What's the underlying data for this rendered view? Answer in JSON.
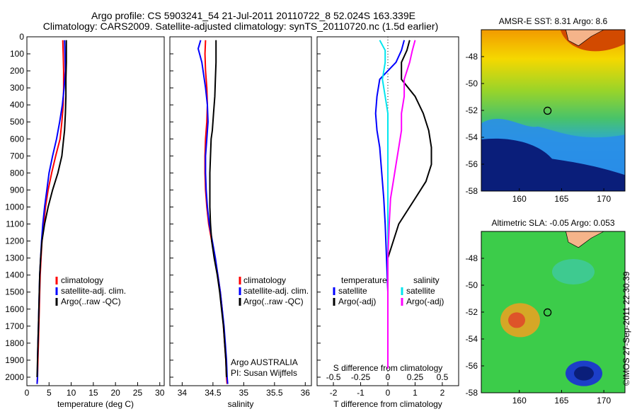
{
  "header": {
    "title_line1": "Argo profile: CS 5903241_54 21-Jul-2011 20110722_8 52.024S 163.339E",
    "title_line2": "Climatology: CARS2009. Satellite-adjusted climatology: synTS_20110720.nc (1.5d earlier)"
  },
  "side_stamp": "©IMOS 27-Sep-2011 22:30:39",
  "colors": {
    "climatology": "#ff0000",
    "satellite": "#0000ff",
    "argo": "#000000",
    "sal_satellite": "#00e5ee",
    "sal_argo": "#ff00ff",
    "land": "#f5b48a"
  },
  "chart_data": [
    {
      "type": "line",
      "panel": "temperature",
      "xlabel": "temperature (deg C)",
      "ylabel": "",
      "xlim": [
        0,
        31
      ],
      "ylim": [
        2050,
        0
      ],
      "xticks": [
        0,
        5,
        10,
        15,
        20,
        25,
        30
      ],
      "yticks": [
        0,
        100,
        200,
        300,
        400,
        500,
        600,
        700,
        800,
        900,
        1000,
        1100,
        1200,
        1300,
        1400,
        1500,
        1600,
        1700,
        1800,
        1900,
        2000
      ],
      "legend": [
        "climatology",
        "satellite-adj. clim.",
        "Argo(..raw -QC)"
      ],
      "legend_position": "lower-center",
      "series": [
        {
          "name": "climatology",
          "color_key": "climatology",
          "x": [
            8.1,
            8.2,
            8.3,
            8.3,
            8.2,
            7.9,
            7.5,
            6.5,
            5.6,
            4.8,
            4.2,
            3.8,
            3.4,
            3.2,
            3.0,
            2.9,
            2.8,
            2.7,
            2.6,
            2.5,
            2.4,
            2.3
          ],
          "y": [
            20,
            100,
            200,
            300,
            400,
            500,
            600,
            700,
            800,
            900,
            1000,
            1100,
            1200,
            1300,
            1400,
            1500,
            1600,
            1700,
            1800,
            1900,
            2000,
            2040
          ]
        },
        {
          "name": "satellite-adj. clim.",
          "color_key": "satellite",
          "x": [
            8.5,
            8.6,
            8.7,
            8.4,
            8.0,
            7.4,
            6.7,
            5.8,
            5.0,
            4.5,
            4.0,
            3.6,
            3.3,
            3.1,
            2.9,
            2.8,
            2.7,
            2.6,
            2.5,
            2.4,
            2.4,
            2.3
          ],
          "y": [
            20,
            100,
            200,
            300,
            400,
            500,
            600,
            700,
            800,
            900,
            1000,
            1100,
            1200,
            1300,
            1400,
            1500,
            1600,
            1700,
            1800,
            1900,
            2000,
            2040
          ]
        },
        {
          "name": "Argo(..raw -QC)",
          "color_key": "argo",
          "x": [
            8.9,
            8.9,
            8.8,
            8.8,
            8.7,
            8.5,
            8.3,
            7.9,
            7.0,
            5.8,
            4.8,
            4.0,
            3.4,
            3.1,
            2.9,
            2.8,
            2.7,
            2.6,
            2.5,
            2.4,
            2.3
          ],
          "y": [
            20,
            150,
            250,
            350,
            450,
            550,
            600,
            700,
            800,
            900,
            1000,
            1100,
            1200,
            1300,
            1400,
            1500,
            1600,
            1700,
            1800,
            1900,
            2000
          ]
        }
      ]
    },
    {
      "type": "line",
      "panel": "salinity",
      "xlabel": "salinity",
      "ylabel": "",
      "xlim": [
        33.8,
        36.1
      ],
      "ylim": [
        2050,
        0
      ],
      "xticks": [
        34,
        34.5,
        35,
        35.5,
        36
      ],
      "legend": [
        "climatology",
        "satellite-adj. clim.",
        "Argo(..raw -QC)"
      ],
      "legend_position": "lower-right",
      "annotation_lines": [
        "Argo AUSTRALIA",
        "PI: Susan Wijffels"
      ],
      "series": [
        {
          "name": "climatology",
          "color_key": "climatology",
          "x": [
            34.38,
            34.37,
            34.38,
            34.4,
            34.41,
            34.4,
            34.38,
            34.37,
            34.37,
            34.38,
            34.4,
            34.43,
            34.48,
            34.53,
            34.58,
            34.62,
            34.65,
            34.67,
            34.69,
            34.71,
            34.72,
            34.73
          ],
          "y": [
            20,
            100,
            200,
            300,
            400,
            500,
            600,
            700,
            800,
            900,
            1000,
            1100,
            1200,
            1300,
            1400,
            1500,
            1600,
            1700,
            1800,
            1900,
            2000,
            2040
          ]
        },
        {
          "name": "satellite-adj. clim.",
          "color_key": "satellite",
          "x": [
            34.3,
            34.26,
            34.32,
            34.38,
            34.41,
            34.42,
            34.4,
            34.38,
            34.38,
            34.39,
            34.41,
            34.44,
            34.49,
            34.54,
            34.58,
            34.62,
            34.65,
            34.68,
            34.7,
            34.72,
            34.73,
            34.74
          ],
          "y": [
            20,
            70,
            150,
            300,
            400,
            500,
            600,
            700,
            800,
            900,
            1000,
            1100,
            1200,
            1300,
            1400,
            1500,
            1600,
            1700,
            1800,
            1900,
            2000,
            2040
          ]
        },
        {
          "name": "Argo(..raw -QC)",
          "color_key": "argo",
          "x": [
            34.55,
            34.55,
            34.54,
            34.53,
            34.51,
            34.49,
            34.47,
            34.46,
            34.45,
            34.45,
            34.45,
            34.46,
            34.48,
            34.52,
            34.57,
            34.61,
            34.64,
            34.67,
            34.69,
            34.71,
            34.72
          ],
          "y": [
            20,
            150,
            250,
            350,
            450,
            550,
            600,
            700,
            800,
            900,
            1000,
            1100,
            1200,
            1300,
            1400,
            1500,
            1600,
            1700,
            1800,
            1900,
            2000
          ]
        }
      ]
    },
    {
      "type": "line",
      "panel": "difference",
      "xlabel": "T difference from climatology",
      "top_label": "S difference from climatology",
      "xlim": [
        -2.6,
        2.6
      ],
      "ylim": [
        2050,
        0
      ],
      "xticks_T": [
        -2,
        -1,
        0,
        1,
        2
      ],
      "xticks_S": [
        -0.5,
        -0.25,
        0,
        0.25,
        0.5
      ],
      "xticks_S_labels": [
        "-0.5",
        "-0.25",
        "0",
        "0.25",
        "0.5"
      ],
      "zero_line": true,
      "legend_groups": [
        {
          "title": "temperature",
          "items": [
            "satellite",
            "Argo(-adj)"
          ],
          "color_keys": [
            "satellite",
            "argo"
          ]
        },
        {
          "title": "salinity",
          "items": [
            "satellite",
            "Argo(-adj)"
          ],
          "color_keys": [
            "sal_satellite",
            "sal_argo"
          ]
        }
      ],
      "series": [
        {
          "name": "satellite",
          "color_key": "satellite",
          "x": [
            0.6,
            0.5,
            0.3,
            -0.3,
            -0.4,
            -0.45,
            -0.4,
            -0.3,
            -0.25,
            -0.2,
            -0.15,
            -0.1,
            -0.05,
            0,
            0,
            0
          ],
          "y": [
            20,
            80,
            150,
            250,
            350,
            450,
            550,
            650,
            750,
            850,
            950,
            1100,
            1300,
            1500,
            1700,
            1950
          ]
        },
        {
          "name": "Argo(-adj)",
          "color_key": "argo",
          "x": [
            0.8,
            0.7,
            0.5,
            0.5,
            1.0,
            1.3,
            1.5,
            1.6,
            1.6,
            1.4,
            1.0,
            0.4,
            0,
            0,
            0,
            0
          ],
          "y": [
            20,
            80,
            150,
            250,
            350,
            450,
            550,
            650,
            750,
            850,
            950,
            1100,
            1300,
            1500,
            1700,
            1950
          ]
        },
        {
          "name": "satellite",
          "color_key": "sal_satellite",
          "x": [
            -0.3,
            -0.1,
            -0.1,
            -0.2,
            -0.1,
            0,
            0,
            0,
            0,
            0,
            0,
            0,
            0,
            0,
            0,
            0
          ],
          "y": [
            20,
            80,
            150,
            250,
            350,
            450,
            550,
            650,
            750,
            850,
            950,
            1100,
            1300,
            1500,
            1700,
            1950
          ]
        },
        {
          "name": "Argo(-adj)",
          "color_key": "sal_argo",
          "x": [
            1.0,
            0.9,
            0.8,
            0.6,
            0.6,
            0.5,
            0.5,
            0.4,
            0.3,
            0.2,
            0.1,
            0.05,
            0,
            0,
            0,
            0
          ],
          "y": [
            20,
            80,
            150,
            250,
            350,
            450,
            550,
            650,
            750,
            850,
            950,
            1100,
            1300,
            1500,
            1700,
            1950
          ]
        }
      ]
    },
    {
      "type": "heatmap",
      "panel": "sst-map",
      "title": "AMSR-E SST: 8.31 Argo: 8.6",
      "xlim": [
        155.5,
        172.5
      ],
      "ylim": [
        -58,
        -46
      ],
      "xticks": [
        160,
        165,
        170
      ],
      "yticks": [
        -48,
        -50,
        -52,
        -54,
        -56,
        -58
      ],
      "float_position": {
        "lon": 163.339,
        "lat": -52.024
      }
    },
    {
      "type": "heatmap",
      "panel": "sla-map",
      "title": "Altimetric SLA: -0.05 Argo: 0.053",
      "xlim": [
        155.5,
        172.5
      ],
      "ylim": [
        -58,
        -46
      ],
      "xticks": [
        160,
        165,
        170
      ],
      "yticks": [
        -48,
        -50,
        -52,
        -54,
        -56,
        -58
      ],
      "float_position": {
        "lon": 163.339,
        "lat": -52.024
      }
    }
  ]
}
